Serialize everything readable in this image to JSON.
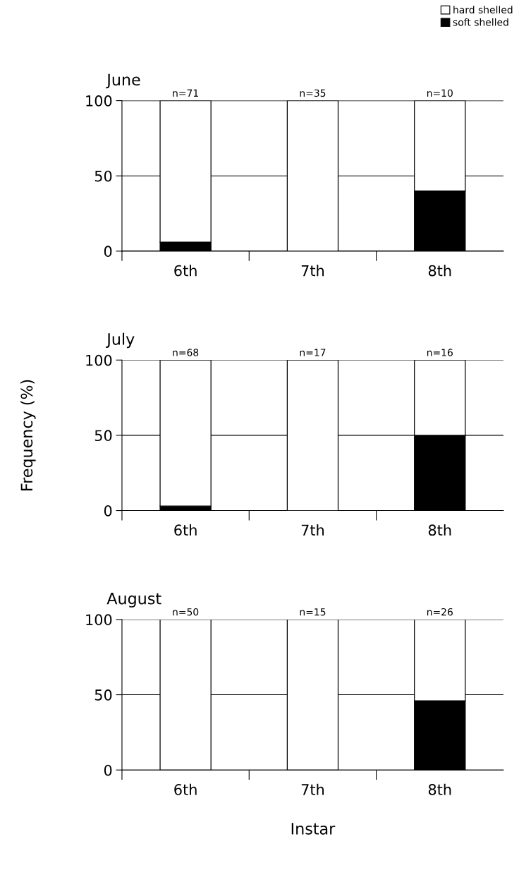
{
  "chart_data": [
    {
      "type": "bar",
      "title": "June",
      "stacked": true,
      "categories": [
        "6th",
        "7th",
        "8th"
      ],
      "series": [
        {
          "name": "soft shelled",
          "color": "#000000",
          "values": [
            6,
            0,
            40
          ]
        },
        {
          "name": "hard shelled",
          "color": "#ffffff",
          "values": [
            94,
            100,
            60
          ]
        }
      ],
      "ylim": [
        0,
        100
      ],
      "yticks": [
        0,
        50,
        100
      ],
      "grid": "y",
      "legend": "top right",
      "annotations": [
        {
          "text": "n=71",
          "x": "6th",
          "y": 100
        },
        {
          "text": "n=35",
          "x": "7th",
          "y": 100
        },
        {
          "text": "n=10",
          "x": "8th",
          "y": 100
        }
      ]
    },
    {
      "type": "bar",
      "title": "July",
      "stacked": true,
      "categories": [
        "6th",
        "7th",
        "8th"
      ],
      "ylabel": "Frequency (%)",
      "series": [
        {
          "color": "#000000",
          "values": [
            3,
            0,
            50
          ]
        },
        {
          "color": "#ffffff",
          "values": [
            97,
            100,
            50
          ]
        }
      ],
      "ylim": [
        0,
        100
      ],
      "yticks": [
        0,
        50,
        100
      ],
      "grid": "y",
      "annotations": [
        {
          "text": "n=68",
          "x": "6th",
          "y": 100
        },
        {
          "text": "n=17",
          "x": "7th",
          "y": 100
        },
        {
          "text": "n=16",
          "x": "8th",
          "y": 100
        }
      ]
    },
    {
      "type": "bar",
      "title": "August",
      "stacked": true,
      "categories": [
        "6th",
        "7th",
        "8th"
      ],
      "xlabel": "Instar",
      "series": [
        {
          "color": "#000000",
          "values": [
            0,
            0,
            46
          ]
        },
        {
          "color": "#ffffff",
          "values": [
            100,
            100,
            54
          ]
        }
      ],
      "ylim": [
        0,
        100
      ],
      "yticks": [
        0,
        50,
        100
      ],
      "grid": "y",
      "annotations": [
        {
          "text": "n=50",
          "x": "6th",
          "y": 100
        },
        {
          "text": "n=15",
          "x": "7th",
          "y": 100
        },
        {
          "text": "n=26",
          "x": "8th",
          "y": 100
        }
      ]
    }
  ]
}
